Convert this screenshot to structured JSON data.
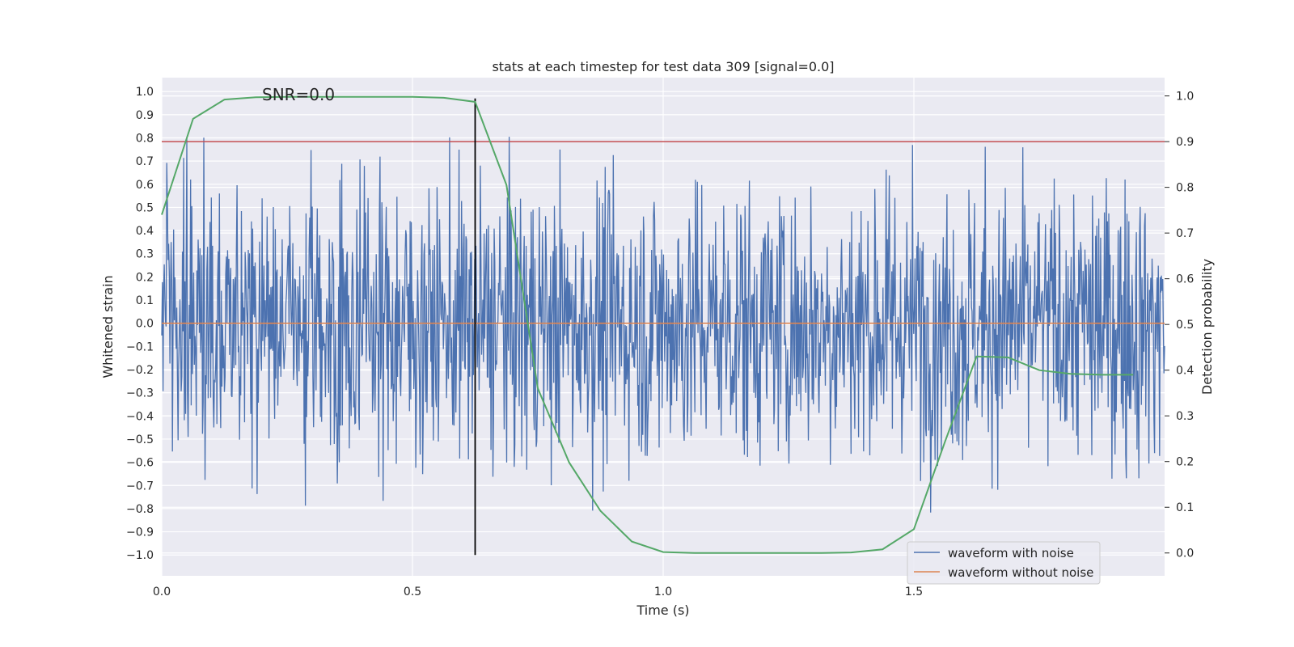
{
  "chart_data": {
    "type": "line",
    "title": "stats at each timestep for test data 309 [signal=0.0]",
    "xlabel": "Time (s)",
    "ylabel_left": "Whitened strain",
    "ylabel_right": "Detection probability",
    "annotation": "SNR=0.0",
    "xlim": [
      0.0,
      2.0
    ],
    "ylim_left": [
      -1.09,
      1.06
    ],
    "ylim_right": [
      -0.05,
      1.04
    ],
    "x_ticks": [
      0.0,
      0.5,
      1.0,
      1.5
    ],
    "x_tick_labels": [
      "0.0",
      "0.5",
      "1.0",
      "1.5"
    ],
    "y_left_ticks": [
      1.0,
      0.9,
      0.8,
      0.7,
      0.6,
      0.5,
      0.4,
      0.3,
      0.2,
      0.1,
      0.0,
      -0.1,
      -0.2,
      -0.3,
      -0.4,
      -0.5,
      -0.6,
      -0.7,
      -0.8,
      -0.9,
      -1.0
    ],
    "y_left_tick_labels": [
      "1.0",
      "0.9",
      "0.8",
      "0.7",
      "0.6",
      "0.5",
      "0.4",
      "0.3",
      "0.2",
      "0.1",
      "0.0",
      "−0.1",
      "−0.2",
      "−0.3",
      "−0.4",
      "−0.5",
      "−0.6",
      "−0.7",
      "−0.8",
      "−0.9",
      "−1.0"
    ],
    "y_right_ticks": [
      1.0,
      0.9,
      0.8,
      0.7,
      0.6,
      0.5,
      0.4,
      0.3,
      0.2,
      0.1,
      0.0
    ],
    "y_right_tick_labels": [
      "1.0",
      "0.9",
      "0.8",
      "0.7",
      "0.6",
      "0.5",
      "0.4",
      "0.3",
      "0.2",
      "0.1",
      "0.0"
    ],
    "grid": true,
    "legend_position": "bottom-right",
    "series": [
      {
        "name": "waveform with noise",
        "axis": "left",
        "color": "#4c72b0",
        "noise_samples": 1600,
        "noise_amplitude_range": [
          -0.95,
          0.95
        ]
      },
      {
        "name": "waveform without noise",
        "axis": "left",
        "color": "#dd8452",
        "x": [
          0.0,
          2.0
        ],
        "y": [
          0.0,
          0.0
        ]
      },
      {
        "axis": "right",
        "color": "#55a868",
        "x": [
          0.0,
          0.0625,
          0.125,
          0.1875,
          0.25,
          0.3125,
          0.375,
          0.4375,
          0.5,
          0.5625,
          0.625,
          0.6875,
          0.75,
          0.8125,
          0.875,
          0.9375,
          1.0,
          1.0625,
          1.125,
          1.1875,
          1.25,
          1.3125,
          1.375,
          1.4375,
          1.5,
          1.5625,
          1.625,
          1.6875,
          1.75,
          1.8125,
          1.875,
          1.9375
        ],
        "y": [
          0.74,
          0.95,
          0.992,
          0.997,
          0.998,
          0.998,
          0.998,
          0.998,
          0.998,
          0.996,
          0.987,
          0.805,
          0.36,
          0.198,
          0.092,
          0.025,
          0.002,
          0.0,
          0.0,
          0.0,
          0.0,
          0.0,
          0.001,
          0.008,
          0.052,
          0.245,
          0.43,
          0.428,
          0.4,
          0.392,
          0.39,
          0.39
        ]
      }
    ],
    "threshold_line": {
      "axis": "right",
      "value": 0.9,
      "color": "#c44e52"
    },
    "vertical_marker": {
      "x": 0.625,
      "y_range": [
        -1.0,
        0.97
      ],
      "color": "#000000"
    }
  }
}
